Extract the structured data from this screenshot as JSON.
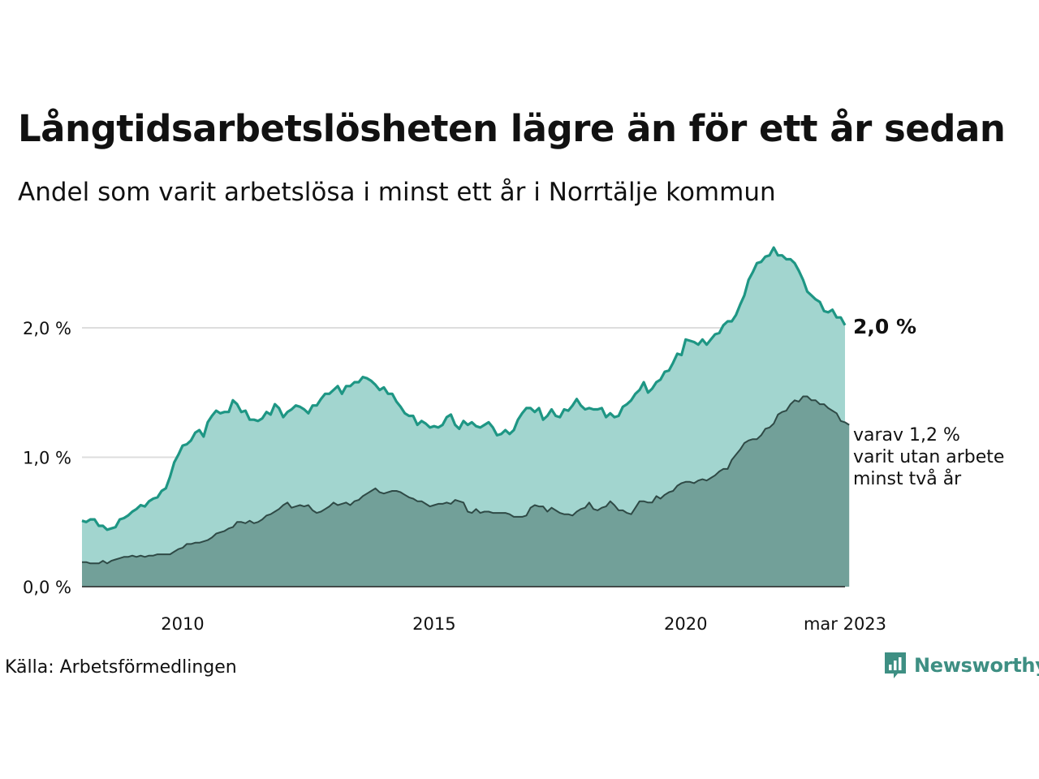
{
  "title": "Långtidsarbetslösheten lägre än för ett år sedan",
  "subtitle": "Andel som varit arbetslösa i minst ett år i Norrtälje kommun",
  "source": "Källa: Arbetsförmedlingen",
  "brand": "Newsworthy",
  "colors": {
    "total_fill": "#a2d5cf",
    "total_line": "#1e9684",
    "twoyear_fill": "#72a099",
    "twoyear_line": "#2f4a46",
    "grid": "#dddddd",
    "brand": "#3e8f83"
  },
  "chart_data": {
    "type": "area",
    "x_start": "2008-01",
    "x_end": "2023-03",
    "x_step": "month",
    "ylim": [
      0,
      2.65
    ],
    "y_ticks": [
      {
        "value": 0,
        "label": "0,0 %"
      },
      {
        "value": 1,
        "label": "1,0 %"
      },
      {
        "value": 2,
        "label": "2,0 %"
      }
    ],
    "x_ticks": [
      {
        "date": "2010-01",
        "label": "2010"
      },
      {
        "date": "2015-01",
        "label": "2015"
      },
      {
        "date": "2020-01",
        "label": "2020"
      },
      {
        "date": "2023-03",
        "label": "mar 2023"
      }
    ],
    "grid": true,
    "series": [
      {
        "key": "total",
        "end_label": "2,0 %",
        "values": [
          0.51,
          0.5,
          0.52,
          0.52,
          0.47,
          0.47,
          0.44,
          0.45,
          0.46,
          0.52,
          0.53,
          0.55,
          0.58,
          0.6,
          0.63,
          0.62,
          0.66,
          0.68,
          0.69,
          0.74,
          0.76,
          0.85,
          0.96,
          1.02,
          1.09,
          1.1,
          1.13,
          1.19,
          1.21,
          1.16,
          1.27,
          1.32,
          1.36,
          1.34,
          1.35,
          1.35,
          1.44,
          1.41,
          1.35,
          1.36,
          1.29,
          1.29,
          1.28,
          1.3,
          1.35,
          1.33,
          1.41,
          1.38,
          1.31,
          1.35,
          1.37,
          1.4,
          1.39,
          1.37,
          1.34,
          1.4,
          1.4,
          1.45,
          1.49,
          1.49,
          1.52,
          1.55,
          1.49,
          1.55,
          1.55,
          1.58,
          1.58,
          1.62,
          1.61,
          1.59,
          1.56,
          1.52,
          1.54,
          1.49,
          1.49,
          1.43,
          1.39,
          1.34,
          1.32,
          1.32,
          1.25,
          1.28,
          1.26,
          1.23,
          1.24,
          1.23,
          1.25,
          1.31,
          1.33,
          1.25,
          1.22,
          1.28,
          1.25,
          1.27,
          1.24,
          1.23,
          1.25,
          1.27,
          1.23,
          1.17,
          1.18,
          1.21,
          1.18,
          1.21,
          1.29,
          1.34,
          1.38,
          1.38,
          1.35,
          1.38,
          1.29,
          1.32,
          1.37,
          1.32,
          1.31,
          1.37,
          1.36,
          1.4,
          1.45,
          1.4,
          1.37,
          1.38,
          1.37,
          1.37,
          1.38,
          1.31,
          1.34,
          1.31,
          1.32,
          1.39,
          1.41,
          1.44,
          1.49,
          1.52,
          1.58,
          1.5,
          1.53,
          1.58,
          1.6,
          1.66,
          1.67,
          1.73,
          1.8,
          1.79,
          1.91,
          1.9,
          1.89,
          1.87,
          1.91,
          1.87,
          1.91,
          1.95,
          1.96,
          2.02,
          2.05,
          2.05,
          2.1,
          2.18,
          2.25,
          2.37,
          2.43,
          2.5,
          2.51,
          2.55,
          2.56,
          2.62,
          2.56,
          2.56,
          2.53,
          2.53,
          2.5,
          2.44,
          2.37,
          2.28,
          2.25,
          2.22,
          2.2,
          2.13,
          2.12,
          2.14,
          2.08,
          2.08,
          2.02
        ]
      },
      {
        "key": "two_years",
        "end_label": "varav 1,2 % varit utan arbete minst två år",
        "end_label_lines": [
          "varav 1,2 %",
          "varit utan arbete",
          "minst två år"
        ],
        "values": [
          0.19,
          0.19,
          0.18,
          0.18,
          0.18,
          0.2,
          0.18,
          0.2,
          0.21,
          0.22,
          0.23,
          0.23,
          0.24,
          0.23,
          0.24,
          0.23,
          0.24,
          0.24,
          0.25,
          0.25,
          0.25,
          0.25,
          0.27,
          0.29,
          0.3,
          0.33,
          0.33,
          0.34,
          0.34,
          0.35,
          0.36,
          0.38,
          0.41,
          0.42,
          0.43,
          0.45,
          0.46,
          0.5,
          0.5,
          0.49,
          0.51,
          0.49,
          0.5,
          0.52,
          0.55,
          0.56,
          0.58,
          0.6,
          0.63,
          0.65,
          0.61,
          0.62,
          0.63,
          0.62,
          0.63,
          0.59,
          0.57,
          0.58,
          0.6,
          0.62,
          0.65,
          0.63,
          0.64,
          0.65,
          0.63,
          0.66,
          0.67,
          0.7,
          0.72,
          0.74,
          0.76,
          0.73,
          0.72,
          0.73,
          0.74,
          0.74,
          0.73,
          0.71,
          0.69,
          0.68,
          0.66,
          0.66,
          0.64,
          0.62,
          0.63,
          0.64,
          0.64,
          0.65,
          0.64,
          0.67,
          0.66,
          0.65,
          0.58,
          0.57,
          0.6,
          0.57,
          0.58,
          0.58,
          0.57,
          0.57,
          0.57,
          0.57,
          0.56,
          0.54,
          0.54,
          0.54,
          0.55,
          0.61,
          0.63,
          0.62,
          0.62,
          0.58,
          0.61,
          0.59,
          0.57,
          0.56,
          0.56,
          0.55,
          0.58,
          0.6,
          0.61,
          0.65,
          0.6,
          0.59,
          0.61,
          0.62,
          0.66,
          0.63,
          0.59,
          0.59,
          0.57,
          0.56,
          0.61,
          0.66,
          0.66,
          0.65,
          0.65,
          0.7,
          0.68,
          0.71,
          0.73,
          0.74,
          0.78,
          0.8,
          0.81,
          0.81,
          0.8,
          0.82,
          0.83,
          0.82,
          0.84,
          0.86,
          0.89,
          0.91,
          0.91,
          0.98,
          1.02,
          1.06,
          1.11,
          1.13,
          1.14,
          1.14,
          1.17,
          1.22,
          1.23,
          1.26,
          1.33,
          1.35,
          1.36,
          1.41,
          1.44,
          1.43,
          1.47,
          1.47,
          1.44,
          1.44,
          1.41,
          1.41,
          1.38,
          1.36,
          1.34,
          1.28,
          1.27,
          1.25
        ]
      }
    ]
  }
}
